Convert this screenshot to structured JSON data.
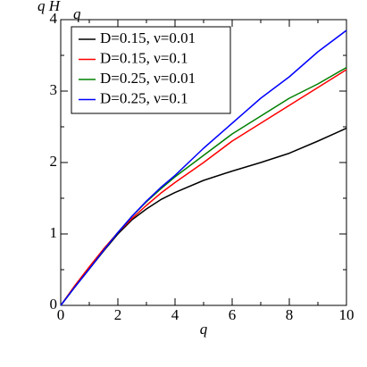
{
  "chart_data": {
    "type": "line",
    "ylabel": "q H",
    "ylabel_sub": "q",
    "xlabel": "q",
    "x": [
      0,
      0.5,
      1,
      1.5,
      2,
      2.5,
      3,
      3.5,
      4,
      5,
      6,
      7,
      8,
      9,
      10
    ],
    "series": [
      {
        "name": "D=0.15, ν=0.01",
        "color": "#000000",
        "values": [
          0,
          0.26,
          0.51,
          0.76,
          1.0,
          1.2,
          1.35,
          1.48,
          1.58,
          1.75,
          1.88,
          2.0,
          2.13,
          2.3,
          2.48
        ]
      },
      {
        "name": "D=0.15, ν=0.1",
        "color": "#ff0000",
        "values": [
          0,
          0.28,
          0.54,
          0.79,
          1.02,
          1.22,
          1.4,
          1.57,
          1.72,
          2.0,
          2.3,
          2.55,
          2.8,
          3.05,
          3.3
        ]
      },
      {
        "name": "D=0.25, ν=0.01",
        "color": "#008000",
        "values": [
          0,
          0.26,
          0.51,
          0.77,
          1.02,
          1.25,
          1.45,
          1.63,
          1.8,
          2.1,
          2.4,
          2.65,
          2.9,
          3.1,
          3.33
        ]
      },
      {
        "name": "D=0.25, ν=0.1",
        "color": "#0000ff",
        "values": [
          0,
          0.26,
          0.51,
          0.77,
          1.02,
          1.25,
          1.46,
          1.65,
          1.82,
          2.2,
          2.55,
          2.9,
          3.2,
          3.55,
          3.85
        ]
      }
    ],
    "xlim": [
      0,
      10
    ],
    "xticks": [
      0,
      2,
      4,
      6,
      8,
      10
    ],
    "ylim": [
      0,
      4
    ],
    "yticks": [
      0,
      1,
      2,
      3,
      4
    ],
    "legend": "upper-left"
  }
}
